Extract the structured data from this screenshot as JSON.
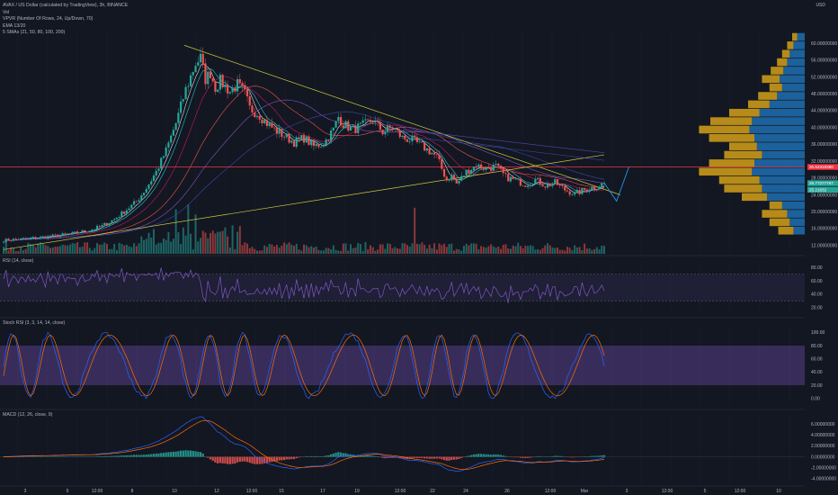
{
  "header": {
    "title": "AVAX / US Dollar (calculated by TradingView), 3h, BINANCE",
    "lines": [
      "Vol",
      "VPVR (Number Of Rows, 24, Up/Down, 70)",
      "EMA 13/20",
      "5 SMAs (21, 50, 80, 100, 200)"
    ],
    "currency": "USD"
  },
  "colors": {
    "background": "#131722",
    "up": "#26a69a",
    "down": "#ef5350",
    "red_level": "#f23645",
    "trendline": "#c9c93b",
    "vp_up": "#1f6fb0",
    "vp_down": "#d4a017",
    "rsi": "#7e57c2",
    "stoch_k": "#2962ff",
    "stoch_d": "#ff6d00"
  },
  "price_axis": {
    "ticks": [
      "60.00000000",
      "56.00000000",
      "52.00000000",
      "48.00000000",
      "44.00000000",
      "40.00000000",
      "36.00000000",
      "32.00000000",
      "28.00000000",
      "24.00000000",
      "20.00000000",
      "16.00000000",
      "12.00000000"
    ],
    "labels": [
      {
        "text": "30.62319380",
        "value": 30.62,
        "color": "#f23645"
      },
      {
        "text": "26.77277767",
        "value": 26.77,
        "color": "#26a69a"
      },
      {
        "text": "25.21632",
        "value": 25.22,
        "color": "#26a69a"
      }
    ]
  },
  "x_axis": {
    "ticks": [
      "3",
      "5",
      "12:00",
      "8",
      "10",
      "12",
      "12:00",
      "15",
      "17",
      "19",
      "12:00",
      "22",
      "24",
      "26",
      "12:00",
      "Mar",
      "3",
      "12:00",
      "5",
      "12:00",
      "10"
    ]
  },
  "panes": {
    "rsi": {
      "title": "RSI (14, close)",
      "ticks": [
        "80.00",
        "60.00",
        "40.00",
        "20.00"
      ]
    },
    "stoch": {
      "title": "Stoch RSI (3, 3, 14, 14, close)",
      "ticks": [
        "100.00",
        "80.00",
        "60.00",
        "40.00",
        "20.00",
        "0.00"
      ]
    },
    "macd": {
      "title": "MACD (12, 26, close, 9)",
      "ticks": [
        "6.00000000",
        "4.00000000",
        "2.00000000",
        "0.00000000",
        "-2.00000000",
        "-4.00000000"
      ]
    }
  },
  "chart_data": {
    "type": "candlestick",
    "symbol": "AVAX / US Dollar",
    "timeframe": "3h",
    "ylim": [
      10,
      63
    ],
    "price_path": [
      [
        0,
        13.2
      ],
      [
        10,
        13.6
      ],
      [
        20,
        14.2
      ],
      [
        28,
        14.8
      ],
      [
        35,
        15.6
      ],
      [
        40,
        16.6
      ],
      [
        45,
        18.2
      ],
      [
        50,
        20.5
      ],
      [
        54,
        22.4
      ],
      [
        58,
        25.6
      ],
      [
        62,
        29.5
      ],
      [
        66,
        34.5
      ],
      [
        70,
        41.0
      ],
      [
        74,
        49.0
      ],
      [
        78,
        55.2
      ],
      [
        80,
        56.5
      ],
      [
        82,
        51.5
      ],
      [
        84,
        53.0
      ],
      [
        86,
        49.5
      ],
      [
        88,
        51.0
      ],
      [
        92,
        48.5
      ],
      [
        95,
        50.2
      ],
      [
        98,
        48.0
      ],
      [
        100,
        44.5
      ],
      [
        104,
        43.0
      ],
      [
        106,
        41.5
      ],
      [
        110,
        39.5
      ],
      [
        114,
        38.0
      ],
      [
        118,
        36.5
      ],
      [
        122,
        37.5
      ],
      [
        126,
        35.5
      ],
      [
        130,
        36.2
      ],
      [
        134,
        39.5
      ],
      [
        136,
        42.5
      ],
      [
        138,
        40.8
      ],
      [
        142,
        39.5
      ],
      [
        146,
        40.5
      ],
      [
        150,
        41.8
      ],
      [
        154,
        39.0
      ],
      [
        158,
        40.0
      ],
      [
        162,
        37.5
      ],
      [
        166,
        37.0
      ],
      [
        170,
        35.5
      ],
      [
        174,
        34.0
      ],
      [
        176,
        33.0
      ],
      [
        178,
        30.2
      ],
      [
        180,
        27.5
      ],
      [
        182,
        28.5
      ],
      [
        184,
        26.6
      ],
      [
        188,
        29.5
      ],
      [
        192,
        31.0
      ],
      [
        196,
        30.2
      ],
      [
        200,
        30.8
      ],
      [
        204,
        28.2
      ],
      [
        208,
        27.4
      ],
      [
        212,
        26.5
      ],
      [
        216,
        27.6
      ],
      [
        220,
        26.2
      ],
      [
        224,
        26.9
      ],
      [
        228,
        25.2
      ],
      [
        232,
        24.2
      ],
      [
        236,
        25.2
      ],
      [
        240,
        25.8
      ],
      [
        244,
        26.8
      ]
    ],
    "projection": [
      [
        244,
        26.8
      ],
      [
        249,
        22.5
      ],
      [
        254,
        30.6
      ]
    ],
    "volume_profile_rows": [
      {
        "price": 61.5,
        "up": 0.06,
        "down": 0.04
      },
      {
        "price": 59.5,
        "up": 0.09,
        "down": 0.05
      },
      {
        "price": 57.5,
        "up": 0.12,
        "down": 0.06
      },
      {
        "price": 55.5,
        "up": 0.14,
        "down": 0.08
      },
      {
        "price": 53.5,
        "up": 0.17,
        "down": 0.1
      },
      {
        "price": 51.5,
        "up": 0.2,
        "down": 0.14
      },
      {
        "price": 49.5,
        "up": 0.18,
        "down": 0.1
      },
      {
        "price": 47.5,
        "up": 0.22,
        "down": 0.15
      },
      {
        "price": 45.5,
        "up": 0.28,
        "down": 0.17
      },
      {
        "price": 43.5,
        "up": 0.36,
        "down": 0.24
      },
      {
        "price": 41.5,
        "up": 0.42,
        "down": 0.33
      },
      {
        "price": 39.5,
        "up": 0.44,
        "down": 0.4
      },
      {
        "price": 37.5,
        "up": 0.4,
        "down": 0.36
      },
      {
        "price": 35.5,
        "up": 0.38,
        "down": 0.22
      },
      {
        "price": 33.5,
        "up": 0.34,
        "down": 0.3
      },
      {
        "price": 31.5,
        "up": 0.4,
        "down": 0.36
      },
      {
        "price": 29.5,
        "up": 0.42,
        "down": 0.42
      },
      {
        "price": 27.5,
        "up": 0.36,
        "down": 0.32
      },
      {
        "price": 25.5,
        "up": 0.34,
        "down": 0.3
      },
      {
        "price": 23.5,
        "up": 0.3,
        "down": 0.2
      },
      {
        "price": 21.5,
        "up": 0.18,
        "down": 0.1
      },
      {
        "price": 19.5,
        "up": 0.14,
        "down": 0.2
      },
      {
        "price": 17.5,
        "up": 0.12,
        "down": 0.16
      },
      {
        "price": 15.5,
        "up": 0.09,
        "down": 0.12
      }
    ],
    "horizontal_levels": [
      30.62
    ],
    "rsi_range": [
      10,
      90
    ],
    "stoch_range": [
      -10,
      110
    ],
    "macd_range": [
      -5,
      7.5
    ]
  }
}
